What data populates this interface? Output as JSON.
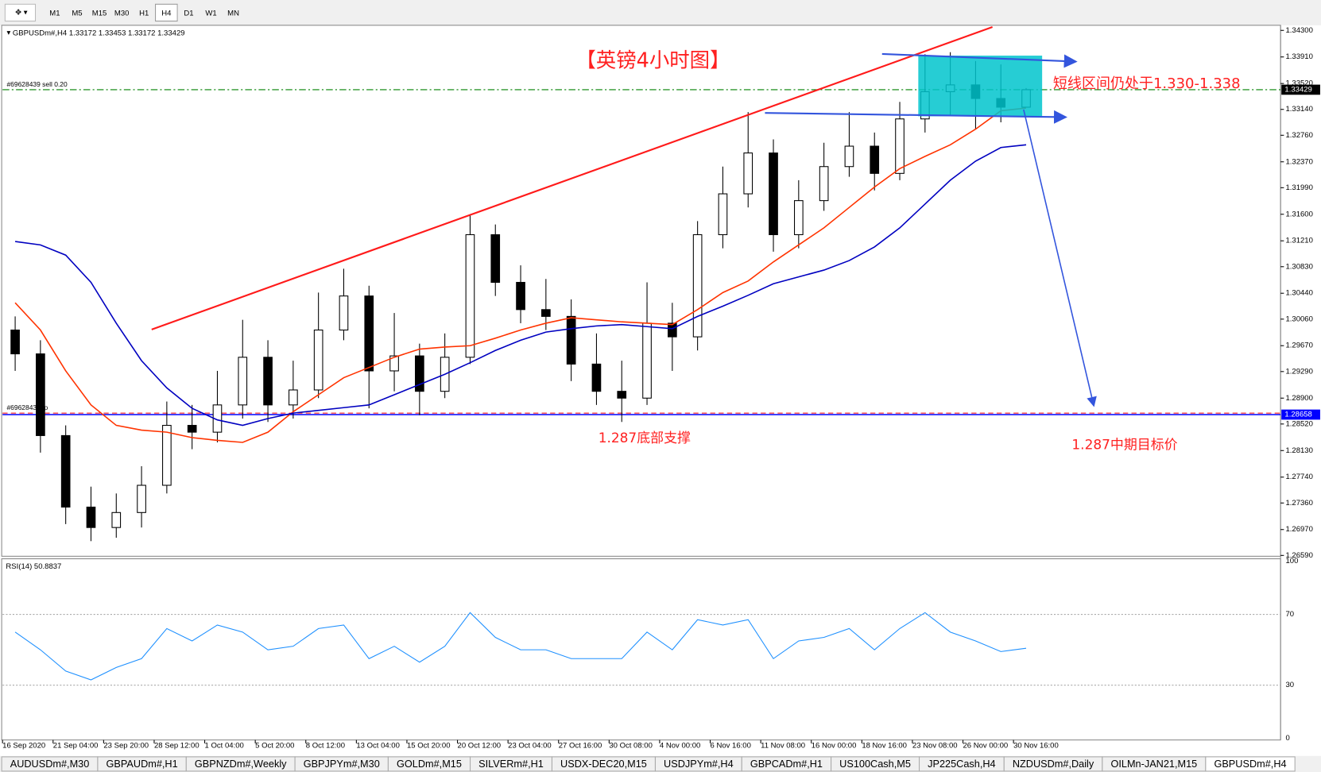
{
  "toolbar": {
    "timeframes": [
      "M1",
      "M5",
      "M15",
      "M30",
      "H1",
      "H4",
      "D1",
      "W1",
      "MN"
    ]
  },
  "annotations": {
    "title": "【英镑4小时图】",
    "range_note": "短线区间仍处于1.330-1.338",
    "support_note": "1.287底部支撑",
    "target_note": "1.287中期目标价"
  },
  "chart_data": [
    {
      "type": "candlestick",
      "symbol": "GBPUSDm#,H4",
      "categories": [
        "16 Sep 2020",
        null,
        "21 Sep 04:00",
        null,
        "23 Sep 20:00",
        null,
        "28 Sep 12:00",
        null,
        "1 Oct 04:00",
        null,
        "5 Oct 20:00",
        null,
        "8 Oct 12:00",
        null,
        "13 Oct 04:00",
        null,
        "15 Oct 20:00",
        null,
        "20 Oct 12:00",
        null,
        "23 Oct 04:00",
        null,
        "27 Oct 16:00",
        null,
        "30 Oct 08:00",
        null,
        "4 Nov 00:00",
        null,
        "6 Nov 16:00",
        null,
        "11 Nov 08:00",
        null,
        "16 Nov 00:00",
        null,
        "18 Nov 16:00",
        null,
        "23 Nov 08:00",
        null,
        "26 Nov 00:00",
        null,
        "30 Nov 16:00"
      ],
      "open": [
        1.299,
        1.2955,
        1.2835,
        1.273,
        1.27,
        1.2722,
        1.2762,
        1.285,
        1.284,
        1.288,
        1.295,
        1.288,
        1.2902,
        1.299,
        1.304,
        1.293,
        1.2952,
        1.29,
        1.295,
        1.313,
        1.306,
        1.302,
        1.301,
        1.294,
        1.29,
        1.289,
        1.3,
        1.298,
        1.313,
        1.319,
        1.325,
        1.313,
        1.318,
        1.323,
        1.326,
        1.322,
        1.33,
        1.334,
        1.335,
        1.333,
        1.33172
      ],
      "high": [
        1.301,
        1.2975,
        1.285,
        1.276,
        1.275,
        1.279,
        1.2885,
        1.288,
        1.293,
        1.3005,
        1.2975,
        1.2945,
        1.3045,
        1.308,
        1.3055,
        1.3015,
        1.297,
        1.2985,
        1.316,
        1.3145,
        1.3085,
        1.3065,
        1.3035,
        1.2985,
        1.2945,
        1.306,
        1.303,
        1.315,
        1.323,
        1.331,
        1.327,
        1.321,
        1.3265,
        1.331,
        1.328,
        1.3325,
        1.3395,
        1.3398,
        1.3385,
        1.338,
        1.33453
      ],
      "low": [
        1.293,
        1.281,
        1.2705,
        1.268,
        1.2685,
        1.27,
        1.275,
        1.2815,
        1.2825,
        1.286,
        1.2855,
        1.286,
        1.289,
        1.2975,
        1.2875,
        1.29,
        1.2865,
        1.289,
        1.294,
        1.304,
        1.3,
        1.299,
        1.2915,
        1.288,
        1.2855,
        1.288,
        1.293,
        1.296,
        1.311,
        1.317,
        1.3105,
        1.311,
        1.3165,
        1.3215,
        1.3195,
        1.321,
        1.328,
        1.3305,
        1.3285,
        1.3295,
        1.33172
      ],
      "close": [
        1.2955,
        1.2835,
        1.273,
        1.27,
        1.2722,
        1.2762,
        1.285,
        1.284,
        1.288,
        1.295,
        1.288,
        1.2902,
        1.299,
        1.304,
        1.293,
        1.2952,
        1.29,
        1.295,
        1.313,
        1.306,
        1.302,
        1.301,
        1.294,
        1.29,
        1.289,
        1.3,
        1.298,
        1.313,
        1.319,
        1.325,
        1.313,
        1.318,
        1.323,
        1.326,
        1.322,
        1.33,
        1.334,
        1.335,
        1.333,
        1.33172,
        1.33429
      ],
      "up_color": "#ffffff",
      "down_color": "#000000",
      "series": [
        {
          "color": "#ff3300",
          "values": [
            1.303,
            1.299,
            1.293,
            1.288,
            1.285,
            1.2843,
            1.284,
            1.2832,
            1.2828,
            1.2825,
            1.284,
            1.287,
            1.2895,
            1.292,
            1.2935,
            1.295,
            1.2962,
            1.2965,
            1.2967,
            1.2978,
            1.299,
            1.3,
            1.3008,
            1.3005,
            1.3002,
            1.3,
            1.2998,
            1.302,
            1.3045,
            1.3062,
            1.309,
            1.3115,
            1.314,
            1.317,
            1.32,
            1.3227,
            1.3245,
            1.3262,
            1.3285,
            1.3312,
            1.3316
          ]
        },
        {
          "color": "#0000c0",
          "values": [
            1.312,
            1.3115,
            1.31,
            1.306,
            1.3,
            1.2945,
            1.2905,
            1.2875,
            1.2858,
            1.285,
            1.286,
            1.2868,
            1.2872,
            1.2876,
            1.288,
            1.2895,
            1.291,
            1.2925,
            1.2942,
            1.296,
            1.2975,
            1.2987,
            1.2992,
            1.2996,
            1.2998,
            1.2995,
            1.2992,
            1.301,
            1.3025,
            1.3041,
            1.3058,
            1.3068,
            1.3078,
            1.3092,
            1.3112,
            1.314,
            1.3175,
            1.321,
            1.3238,
            1.3258,
            1.3262
          ]
        }
      ],
      "lines": [
        {
          "label": "#69628439 sell 0.20",
          "value": 1.33429,
          "color": "#008000",
          "dash": "8 3 2 3"
        },
        {
          "label": "#69628439 tp",
          "value": 1.2868,
          "color": "#ff0000",
          "dash": "6 4"
        },
        {
          "value": 1.28658,
          "color": "#0000ff"
        }
      ],
      "ylim": [
        1.26578,
        1.34375
      ],
      "yticks": [
        {
          "value": 1.343,
          "label": "1.34300"
        },
        {
          "value": 1.3391,
          "label": "1.33910"
        },
        {
          "value": 1.3352,
          "label": "1.33520"
        },
        {
          "value": 1.3314,
          "label": "1.33140"
        },
        {
          "value": 1.3276,
          "label": "1.32760"
        },
        {
          "value": 1.3237,
          "label": "1.32370"
        },
        {
          "value": 1.3199,
          "label": "1.31990"
        },
        {
          "value": 1.316,
          "label": "1.31600"
        },
        {
          "value": 1.3121,
          "label": "1.31210"
        },
        {
          "value": 1.3083,
          "label": "1.30830"
        },
        {
          "value": 1.3044,
          "label": "1.30440"
        },
        {
          "value": 1.3006,
          "label": "1.30060"
        },
        {
          "value": 1.2967,
          "label": "1.29670"
        },
        {
          "value": 1.2929,
          "label": "1.29290"
        },
        {
          "value": 1.289,
          "label": "1.28900"
        },
        {
          "value": 1.2852,
          "label": "1.28520"
        },
        {
          "value": 1.2813,
          "label": "1.28130"
        },
        {
          "value": 1.2774,
          "label": "1.27740"
        },
        {
          "value": 1.2736,
          "label": "1.27360"
        },
        {
          "value": 1.2697,
          "label": "1.26970"
        },
        {
          "value": 1.2659,
          "label": "1.26590"
        }
      ]
    },
    {
      "type": "line",
      "title": "RSI(14)",
      "color": "#1e90ff",
      "values": [
        60,
        50,
        38,
        33,
        40,
        45,
        62,
        55,
        64,
        60,
        50,
        52,
        62,
        64,
        45,
        52,
        43,
        52,
        71,
        57,
        50,
        50,
        45,
        45,
        45,
        60,
        50,
        67,
        64,
        67,
        45,
        55,
        57,
        62,
        50,
        62,
        71,
        60,
        55,
        49,
        50.8837
      ],
      "ylim": [
        0,
        100
      ],
      "yticks": [
        100,
        70,
        30,
        0
      ]
    }
  ],
  "tabs": [
    "AUDUSDm#,M30",
    "GBPAUDm#,H1",
    "GBPNZDm#,Weekly",
    "GBPJPYm#,M30",
    "GOLDm#,M15",
    "SILVERm#,H1",
    "USDX-DEC20,M15",
    "USDJPYm#,H4",
    "GBPCADm#,H1",
    "US100Cash,M5",
    "JP225Cash,H4",
    "NZDUSDm#,Daily",
    "OILMn-JAN21,M15",
    "GBPUSDm#,H4"
  ]
}
